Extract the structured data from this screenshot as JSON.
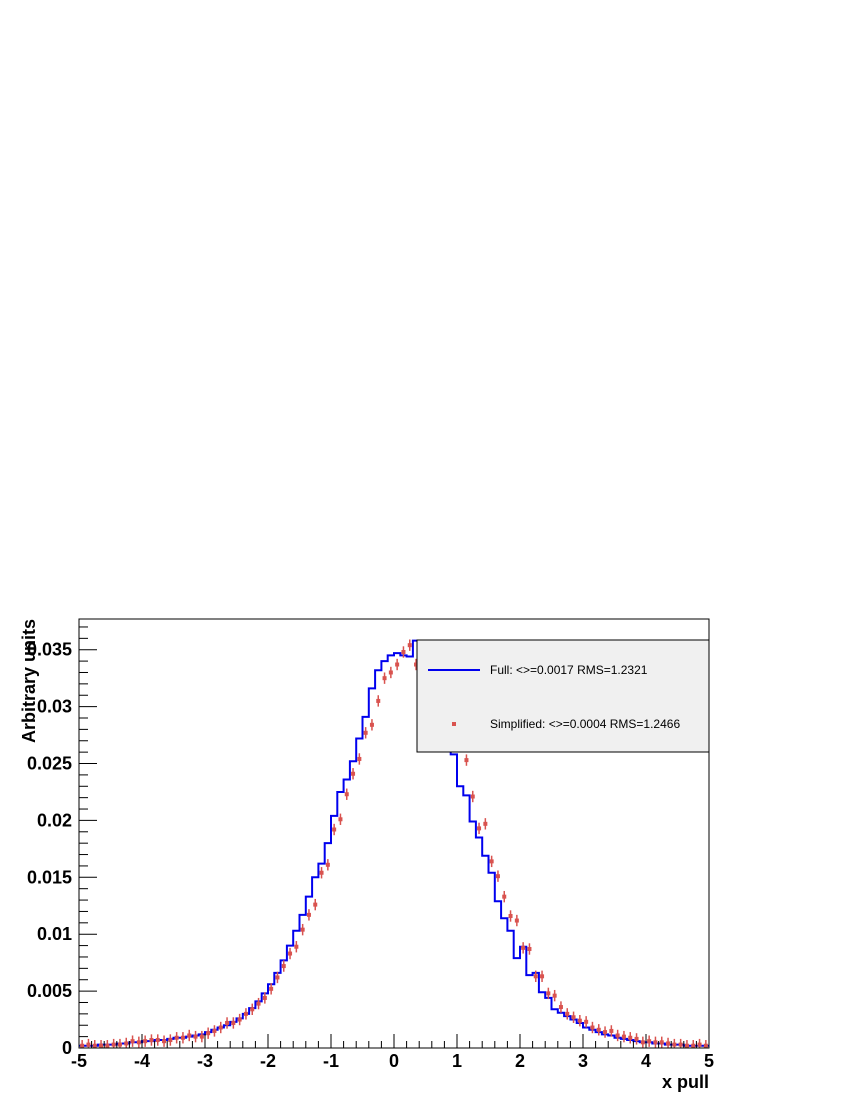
{
  "chart_data": {
    "type": "histogram",
    "xlabel": "x pull",
    "ylabel": "Arbitrary units",
    "xlim": [
      -5,
      5
    ],
    "ylim": [
      0,
      0.0377
    ],
    "x_ticks": [
      -5,
      -4,
      -3,
      -2,
      -1,
      0,
      1,
      2,
      3,
      4,
      5
    ],
    "x_tick_labels": [
      "-5",
      "-4",
      "-3",
      "-2",
      "-1",
      "0",
      "1",
      "2",
      "3",
      "4",
      "5"
    ],
    "y_ticks": [
      0,
      0.005,
      0.01,
      0.015,
      0.02,
      0.025,
      0.03,
      0.035
    ],
    "y_tick_labels": [
      "0",
      "0.005",
      "0.01",
      "0.015",
      "0.02",
      "0.025",
      "0.03",
      "0.035"
    ],
    "bin_edges_range": [
      -5,
      5
    ],
    "bin_width": 0.1,
    "legend_position": "top-right",
    "series": [
      {
        "name": "Full: <>=0.0017 RMS=1.2321",
        "style": "step",
        "color": "#0000ee",
        "values": [
          0.0002,
          0.0002,
          0.0002,
          0.0003,
          0.0003,
          0.0003,
          0.0004,
          0.0004,
          0.0005,
          0.0005,
          0.0006,
          0.0006,
          0.0007,
          0.0007,
          0.0008,
          0.0009,
          0.0009,
          0.001,
          0.0011,
          0.0012,
          0.0014,
          0.0016,
          0.0018,
          0.002,
          0.0023,
          0.0026,
          0.003,
          0.0035,
          0.0041,
          0.0048,
          0.0056,
          0.0066,
          0.0077,
          0.009,
          0.0103,
          0.0117,
          0.0133,
          0.015,
          0.0162,
          0.018,
          0.0204,
          0.0225,
          0.0236,
          0.0252,
          0.0272,
          0.0291,
          0.0316,
          0.0332,
          0.034,
          0.0345,
          0.0347,
          0.0345,
          0.0344,
          0.0358,
          0.0322,
          0.0319,
          0.0305,
          0.0287,
          0.0272,
          0.0258,
          0.023,
          0.0222,
          0.0199,
          0.0185,
          0.0169,
          0.0154,
          0.0129,
          0.0114,
          0.0103,
          0.0079,
          0.0089,
          0.0064,
          0.0066,
          0.0049,
          0.0044,
          0.0034,
          0.0031,
          0.0028,
          0.0025,
          0.0022,
          0.0018,
          0.0016,
          0.0014,
          0.0012,
          0.0011,
          0.0009,
          0.0008,
          0.0007,
          0.0006,
          0.0005,
          0.0005,
          0.0004,
          0.0004,
          0.0003,
          0.0003,
          0.0003,
          0.0002,
          0.0002,
          0.0002,
          0.0002
        ]
      },
      {
        "name": "Simplified: <>=0.0004 RMS=1.2466",
        "style": "markers_with_errors",
        "color": "#d9534f",
        "error": 0.0005,
        "values": [
          0.0002,
          0.0003,
          0.0002,
          0.0002,
          0.0002,
          0.0003,
          0.0003,
          0.0004,
          0.0006,
          0.0005,
          0.0006,
          0.0007,
          0.0007,
          0.0006,
          0.0007,
          0.0009,
          0.0009,
          0.0011,
          0.001,
          0.001,
          0.0013,
          0.0015,
          0.0018,
          0.0022,
          0.0022,
          0.0025,
          0.003,
          0.0034,
          0.0039,
          0.0044,
          0.0052,
          0.0062,
          0.0072,
          0.0083,
          0.0089,
          0.0104,
          0.0117,
          0.0126,
          0.0154,
          0.0161,
          0.0192,
          0.0201,
          0.0223,
          0.0241,
          0.0254,
          0.0277,
          0.0284,
          0.0305,
          0.0325,
          0.033,
          0.0337,
          0.0348,
          0.0354,
          0.0337,
          0.0352,
          0.0345,
          0.0335,
          0.032,
          0.03,
          0.0285,
          0.0265,
          0.0253,
          0.0221,
          0.0193,
          0.0197,
          0.0164,
          0.0151,
          0.0133,
          0.0116,
          0.0112,
          0.0088,
          0.0087,
          0.0063,
          0.0063,
          0.0048,
          0.0046,
          0.0036,
          0.003,
          0.0027,
          0.0024,
          0.0023,
          0.0018,
          0.0016,
          0.0014,
          0.0015,
          0.0011,
          0.001,
          0.0009,
          0.0008,
          0.0005,
          0.0006,
          0.0005,
          0.0005,
          0.0004,
          0.0003,
          0.0003,
          0.0002,
          0.0002,
          0.0003,
          0.0002
        ]
      }
    ]
  }
}
